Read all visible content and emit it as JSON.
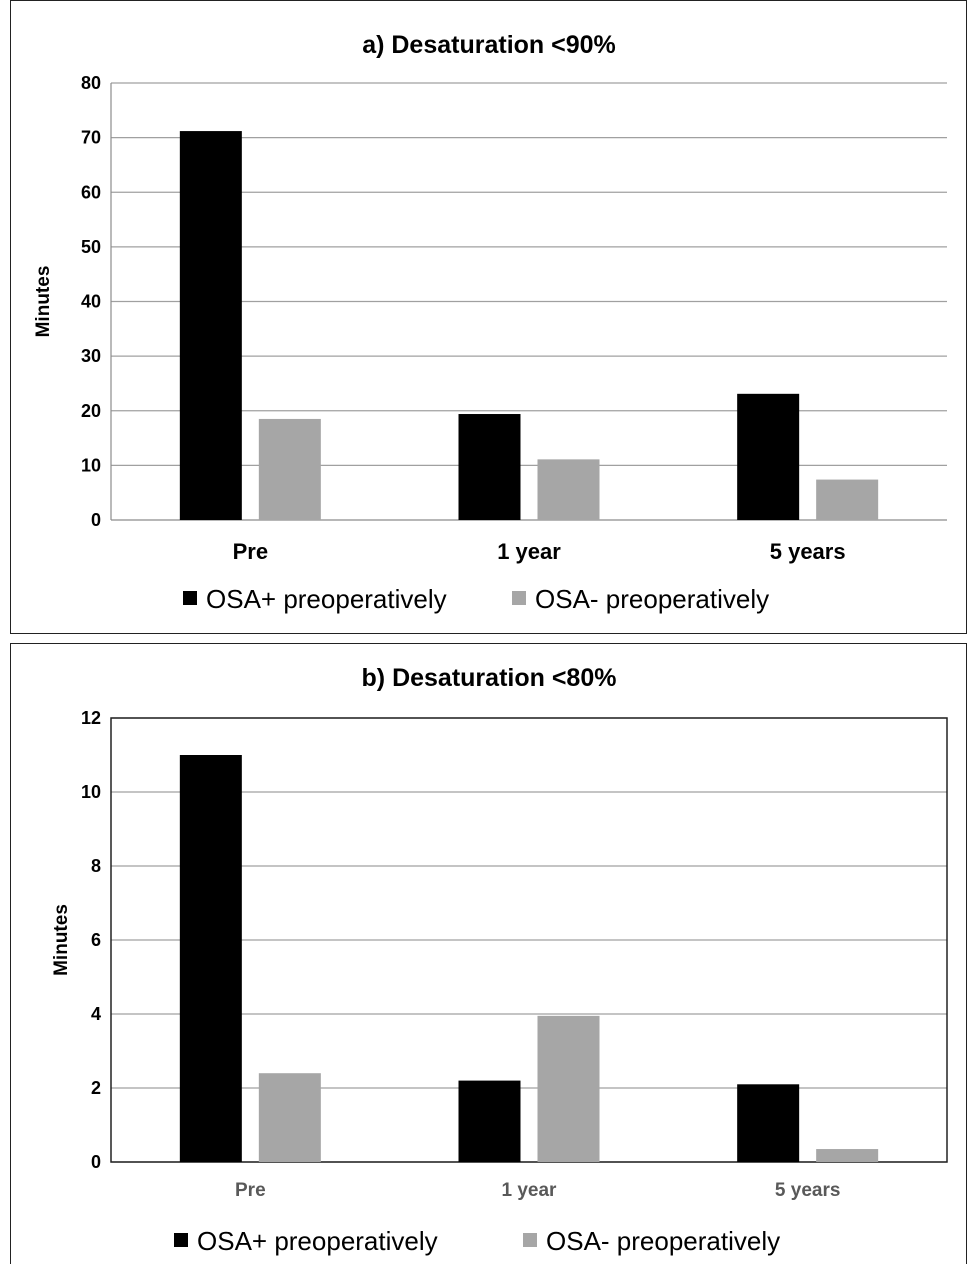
{
  "chart_data": [
    {
      "type": "bar",
      "title": "a) Desaturation  <90%",
      "ylabel": "Minutes",
      "xlabel": "",
      "ylim": [
        0,
        80
      ],
      "yticks": [
        "0",
        "10",
        "20",
        "30",
        "40",
        "50",
        "60",
        "70",
        "80"
      ],
      "grid": true,
      "legend_position": "bottom",
      "categories": [
        "Pre",
        "1 year",
        "5 years"
      ],
      "series": [
        {
          "name": "OSA+ preoperatively",
          "color": "#000000",
          "values": [
            71.2,
            19.4,
            23.1
          ]
        },
        {
          "name": "OSA- preoperatively",
          "color": "#a6a6a6",
          "values": [
            18.5,
            11.1,
            7.4
          ]
        }
      ]
    },
    {
      "type": "bar",
      "title": "b) Desaturation  <80%",
      "ylabel": "Minutes",
      "xlabel": "",
      "ylim": [
        0,
        12
      ],
      "yticks": [
        "0",
        "2",
        "4",
        "6",
        "8",
        "10",
        "12"
      ],
      "grid": true,
      "legend_position": "bottom",
      "categories": [
        "Pre",
        "1 year",
        "5 years"
      ],
      "series": [
        {
          "name": "OSA+ preoperatively",
          "color": "#000000",
          "values": [
            11.0,
            2.2,
            2.1
          ]
        },
        {
          "name": "OSA- preoperatively",
          "color": "#a6a6a6",
          "values": [
            2.4,
            3.95,
            0.35
          ]
        }
      ]
    }
  ]
}
